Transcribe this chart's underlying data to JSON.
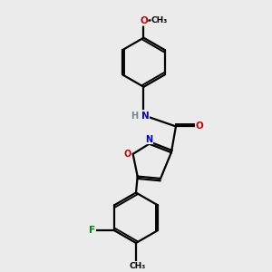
{
  "background_color": "#ebebeb",
  "bond_color": "#000000",
  "atom_colors": {
    "N": "#0000cc",
    "O": "#cc0000",
    "F": "#008800",
    "C": "#000000",
    "H": "#6e8b8b"
  },
  "lw": 1.6,
  "dbl_off": 0.07
}
